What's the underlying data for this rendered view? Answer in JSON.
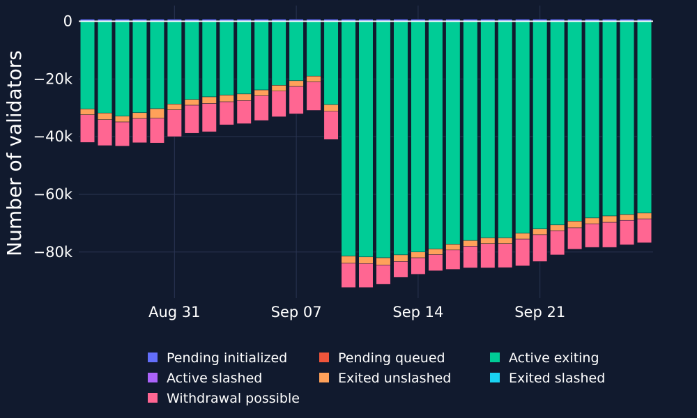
{
  "chart_data": {
    "type": "bar",
    "stacked": true,
    "ylabel": "Number of validators",
    "xlabel": "",
    "ylim": [
      -96000,
      4000
    ],
    "y_ticks": [
      0,
      -20000,
      -40000,
      -60000,
      -80000
    ],
    "y_tick_labels": [
      "0",
      "−20k",
      "−40k",
      "−60k",
      "−80k"
    ],
    "x_ticks": [
      "Aug 31",
      "Sep 07",
      "Sep 14",
      "Sep 21"
    ],
    "x_tick_dates": [
      "2023-08-31",
      "2023-09-07",
      "2023-09-14",
      "2023-09-21"
    ],
    "grid": true,
    "legend_position": "bottom",
    "x": [
      "2023-08-26",
      "2023-08-27",
      "2023-08-28",
      "2023-08-29",
      "2023-08-30",
      "2023-08-31",
      "2023-09-01",
      "2023-09-02",
      "2023-09-03",
      "2023-09-04",
      "2023-09-05",
      "2023-09-06",
      "2023-09-07",
      "2023-09-08",
      "2023-09-09",
      "2023-09-10",
      "2023-09-11",
      "2023-09-12",
      "2023-09-13",
      "2023-09-14",
      "2023-09-15",
      "2023-09-16",
      "2023-09-17",
      "2023-09-18",
      "2023-09-19",
      "2023-09-20",
      "2023-09-21",
      "2023-09-22",
      "2023-09-23",
      "2023-09-24",
      "2023-09-25",
      "2023-09-26",
      "2023-09-27"
    ],
    "series": [
      {
        "name": "Pending initialized",
        "color": "#636efa",
        "values": [
          0,
          0,
          0,
          0,
          0,
          0,
          0,
          0,
          0,
          0,
          0,
          0,
          0,
          0,
          0,
          0,
          0,
          0,
          0,
          0,
          0,
          0,
          0,
          0,
          0,
          0,
          0,
          0,
          0,
          0,
          0,
          0,
          0
        ]
      },
      {
        "name": "Pending queued",
        "color": "#ef553b",
        "values": [
          0,
          0,
          0,
          0,
          0,
          0,
          0,
          0,
          0,
          0,
          0,
          0,
          0,
          0,
          0,
          0,
          0,
          0,
          0,
          0,
          0,
          0,
          0,
          0,
          0,
          0,
          0,
          0,
          0,
          0,
          0,
          0,
          0
        ]
      },
      {
        "name": "Active exiting",
        "color": "#00cc96",
        "values": [
          -30400,
          -31800,
          -32900,
          -31700,
          -30300,
          -28700,
          -27100,
          -26200,
          -25600,
          -25200,
          -23800,
          -22200,
          -20600,
          -19000,
          -28900,
          -81400,
          -81700,
          -82000,
          -81000,
          -80000,
          -78900,
          -77300,
          -76000,
          -75100,
          -75100,
          -73500,
          -72000,
          -70600,
          -69300,
          -68200,
          -67500,
          -67000,
          -66500
        ]
      },
      {
        "name": "Active slashed",
        "color": "#ab63fa",
        "values": [
          0,
          0,
          0,
          0,
          0,
          0,
          0,
          0,
          0,
          0,
          0,
          0,
          0,
          0,
          0,
          0,
          0,
          0,
          0,
          0,
          0,
          0,
          0,
          0,
          0,
          0,
          0,
          0,
          0,
          0,
          0,
          0,
          0
        ]
      },
      {
        "name": "Exited unslashed",
        "color": "#ffa15a",
        "values": [
          -2000,
          -2300,
          -2000,
          -2000,
          -3300,
          -2000,
          -2000,
          -2300,
          -2300,
          -2300,
          -2000,
          -2000,
          -2000,
          -2000,
          -2300,
          -2500,
          -2300,
          -2500,
          -2300,
          -2000,
          -2000,
          -2000,
          -2000,
          -2000,
          -2000,
          -2000,
          -2000,
          -2000,
          -2300,
          -2000,
          -2200,
          -2000,
          -2000
        ]
      },
      {
        "name": "Exited slashed",
        "color": "#19d3f3",
        "values": [
          0,
          0,
          0,
          0,
          0,
          0,
          0,
          0,
          0,
          0,
          0,
          0,
          0,
          0,
          0,
          0,
          0,
          0,
          0,
          0,
          0,
          0,
          0,
          0,
          0,
          0,
          0,
          0,
          0,
          0,
          0,
          0,
          0
        ]
      },
      {
        "name": "Withdrawal possible",
        "color": "#ff6692",
        "values": [
          -9600,
          -9000,
          -8400,
          -8400,
          -8600,
          -9300,
          -9700,
          -9800,
          -8000,
          -8000,
          -8600,
          -8900,
          -9500,
          -9900,
          -9800,
          -8400,
          -8300,
          -6700,
          -5500,
          -5700,
          -5600,
          -6700,
          -7500,
          -8400,
          -8300,
          -9300,
          -9300,
          -8400,
          -7400,
          -8200,
          -8700,
          -8500,
          -8300
        ]
      }
    ]
  }
}
